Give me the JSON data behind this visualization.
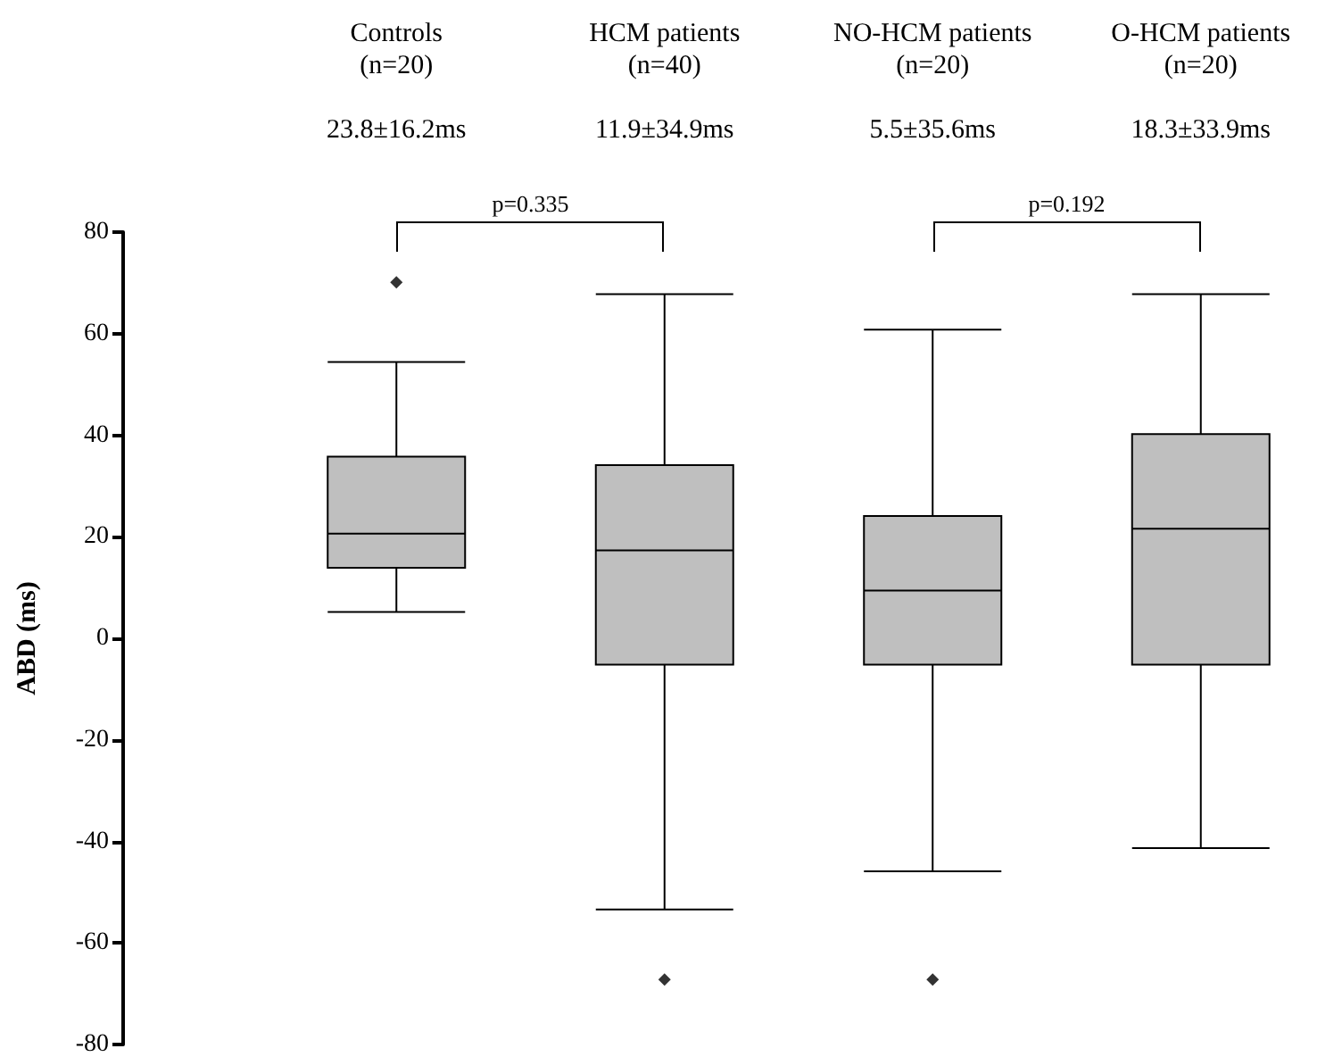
{
  "chart_data": {
    "type": "box",
    "ylabel": "ABD (ms)",
    "categories": [
      "Controls\n(n=20)",
      "HCM patients\n(n=40)",
      "NO-HCM patients\n(n=20)",
      "O-HCM patients\n(n=20)"
    ],
    "boxes": [
      {
        "low": 5.2,
        "q1": 13.9,
        "median": 20.6,
        "q3": 35.8,
        "high": 54.4,
        "outliers": [
          70.1
        ]
      },
      {
        "low": -53.4,
        "q1": -5.2,
        "median": 17.3,
        "q3": 34.1,
        "high": 67.8,
        "outliers": [
          -67.2
        ]
      },
      {
        "low": -45.9,
        "q1": -5.2,
        "median": 9.4,
        "q3": 24.1,
        "high": 60.8,
        "outliers": [
          -67.2
        ]
      },
      {
        "low": -41.3,
        "q1": -5.2,
        "median": 21.6,
        "q3": 40.2,
        "high": 67.8
      }
    ],
    "color": "#bfbfbf",
    "ylim": [
      -80,
      80
    ],
    "yticks": [
      -80,
      -60,
      -40,
      -20,
      0,
      20,
      40,
      60,
      80
    ],
    "marker": "diamond",
    "annotations": [
      "23.8±16.2ms",
      "11.9±34.9ms",
      "5.5±35.6ms",
      "18.3±33.9ms",
      "p=0.335",
      "p=0.192"
    ]
  }
}
